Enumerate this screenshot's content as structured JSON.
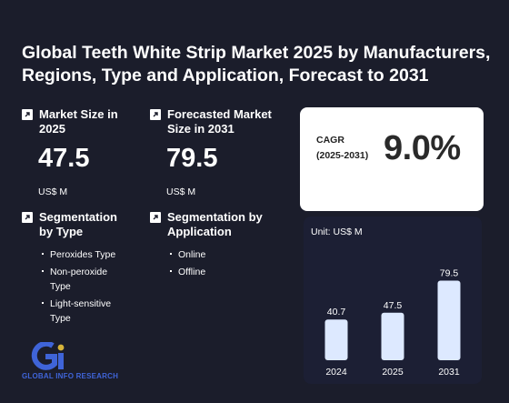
{
  "title": "Global Teeth White Strip Market 2025 by Manufacturers, Regions, Type and Application, Forecast to 2031",
  "market_size": {
    "label": "Market Size in 2025",
    "value": "47.5",
    "unit": "US$ M"
  },
  "forecast_size": {
    "label": "Forecasted Market Size in 2031",
    "value": "79.5",
    "unit": "US$ M"
  },
  "segmentation_type": {
    "label": "Segmentation by Type",
    "items": [
      "Peroxides Type",
      "Non-peroxide Type",
      "Light-sensitive Type"
    ]
  },
  "segmentation_application": {
    "label": "Segmentation by Application",
    "items": [
      "Online",
      "Offline"
    ]
  },
  "cagr": {
    "label_line1": "CAGR",
    "label_line2": "(2025-2031)",
    "value": "9.0%"
  },
  "logo": {
    "text": "GLOBAL INFO RESEARCH",
    "colors": {
      "blue": "#3f64d8",
      "gold": "#d7b43a"
    }
  },
  "chart_data": {
    "type": "bar",
    "unit_label": "Unit: US$ M",
    "categories": [
      "2024",
      "2025",
      "2031"
    ],
    "values": [
      40.7,
      47.5,
      79.5
    ],
    "data_labels": [
      "40.7",
      "47.5",
      "79.5"
    ],
    "bar_color": "#dde9ff",
    "ylim": [
      0,
      80
    ]
  }
}
